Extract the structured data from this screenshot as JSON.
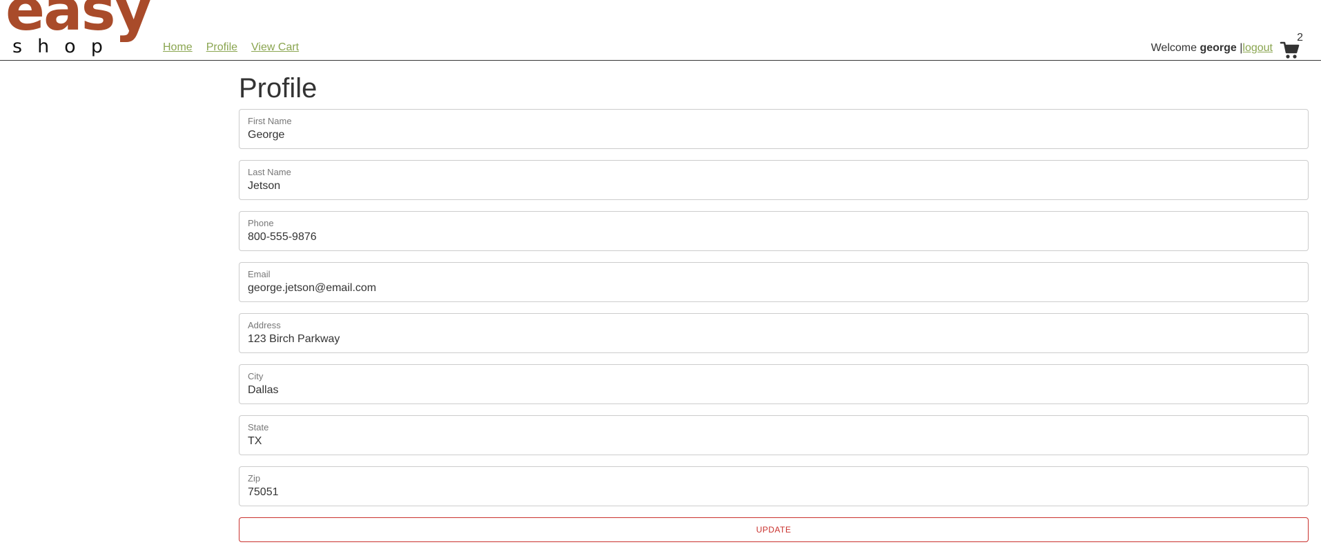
{
  "logo": {
    "top_text": "easy",
    "bottom_text": "shop",
    "brand_color": "#a94b2a"
  },
  "nav": {
    "items": [
      {
        "label": "Home"
      },
      {
        "label": "Profile"
      },
      {
        "label": "View Cart"
      }
    ],
    "link_color": "#8aa550"
  },
  "user": {
    "welcome_prefix": "Welcome",
    "username": "george",
    "separator": "|",
    "logout_label": "logout",
    "cart_count": "2",
    "cart_icon": "shopping-cart-icon"
  },
  "profile": {
    "title": "Profile",
    "fields": [
      {
        "label": "First Name",
        "value": "George"
      },
      {
        "label": "Last Name",
        "value": "Jetson"
      },
      {
        "label": "Phone",
        "value": "800-555-9876"
      },
      {
        "label": "Email",
        "value": "george.jetson@email.com"
      },
      {
        "label": "Address",
        "value": "123 Birch Parkway"
      },
      {
        "label": "City",
        "value": "Dallas"
      },
      {
        "label": "State",
        "value": "TX"
      },
      {
        "label": "Zip",
        "value": "75051"
      }
    ],
    "update_label": "UPDATE",
    "accent_color": "#c9302c"
  }
}
